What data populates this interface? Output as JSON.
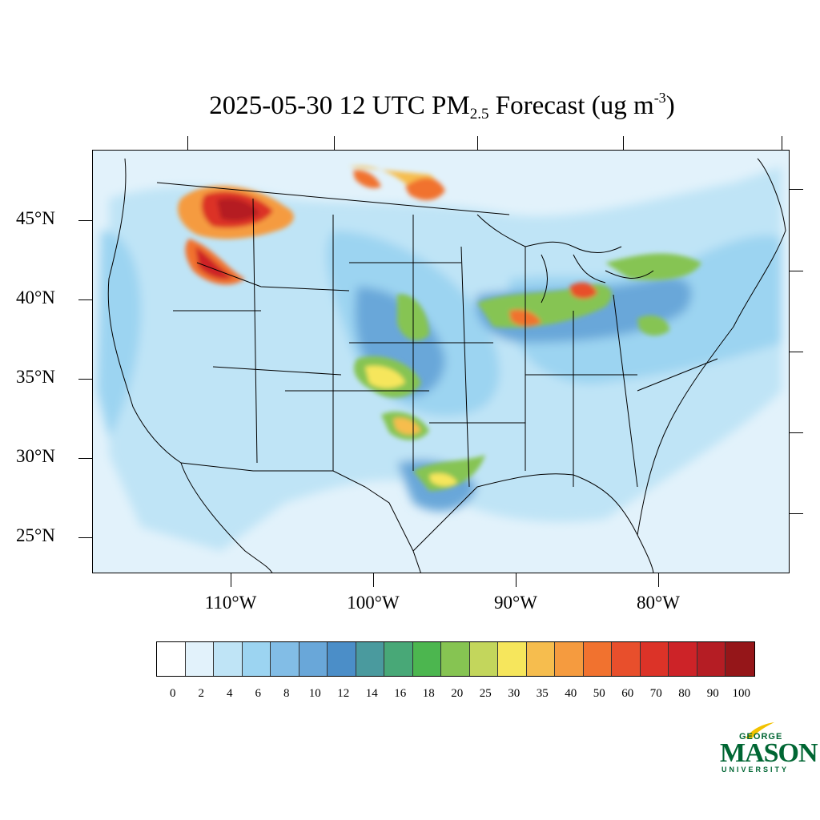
{
  "title": {
    "prefix": "2025-05-30 12 UTC PM",
    "subscript": "2.5",
    "middle": " Forecast (ug m",
    "superscript": "-3",
    "suffix": ")"
  },
  "axes": {
    "lat_labels": [
      "45°N",
      "40°N",
      "35°N",
      "30°N",
      "25°N"
    ],
    "lon_labels": [
      "110°W",
      "100°W",
      "90°W",
      "80°W"
    ]
  },
  "colorbar": {
    "labels": [
      "0",
      "2",
      "4",
      "6",
      "8",
      "10",
      "12",
      "14",
      "16",
      "18",
      "20",
      "25",
      "30",
      "35",
      "40",
      "50",
      "60",
      "70",
      "80",
      "90",
      "100"
    ],
    "colors": [
      "#ffffff",
      "#e2f2fb",
      "#bfe4f6",
      "#9cd4f1",
      "#82bde6",
      "#69a7d9",
      "#4b8ec8",
      "#4a9a9e",
      "#48a877",
      "#4cb64f",
      "#86c452",
      "#c3d65c",
      "#f6e65c",
      "#f6bd4e",
      "#f59b3f",
      "#f1722f",
      "#e84f2c",
      "#dc3328",
      "#cd2328",
      "#b51d24",
      "#951619"
    ]
  },
  "logo": {
    "top": "GEORGE",
    "main": "MASON",
    "bottom": "UNIVERSITY"
  }
}
